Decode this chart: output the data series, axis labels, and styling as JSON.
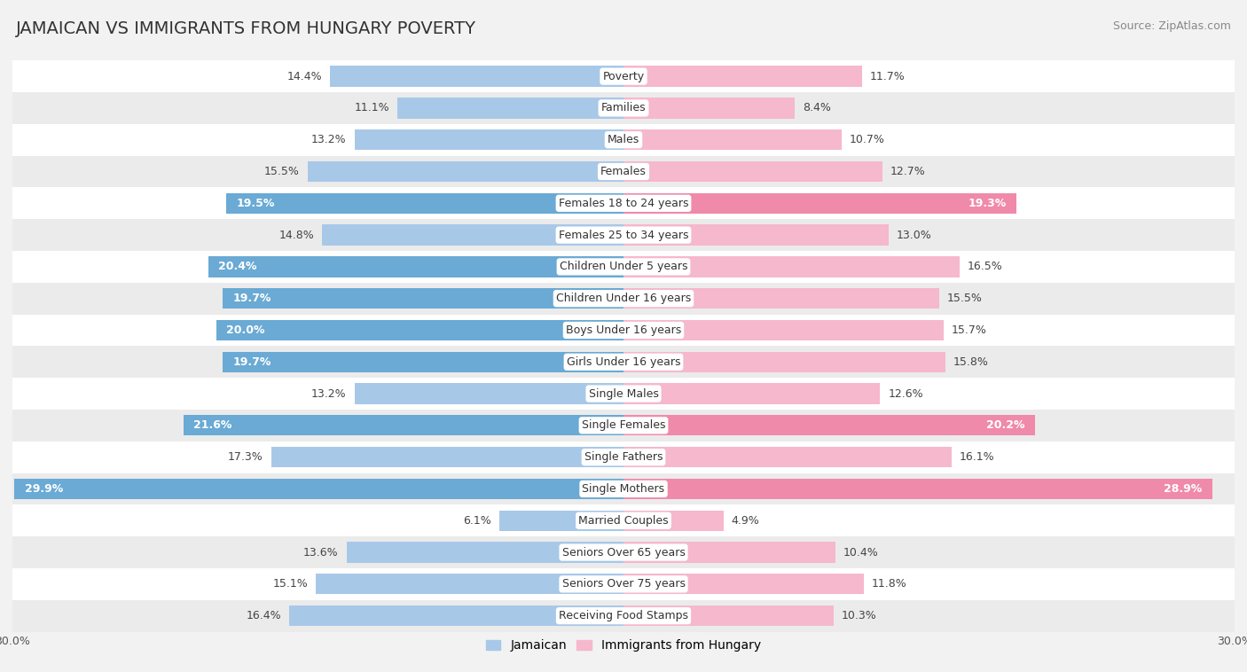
{
  "title": "JAMAICAN VS IMMIGRANTS FROM HUNGARY POVERTY",
  "source": "Source: ZipAtlas.com",
  "categories": [
    "Poverty",
    "Families",
    "Males",
    "Females",
    "Females 18 to 24 years",
    "Females 25 to 34 years",
    "Children Under 5 years",
    "Children Under 16 years",
    "Boys Under 16 years",
    "Girls Under 16 years",
    "Single Males",
    "Single Females",
    "Single Fathers",
    "Single Mothers",
    "Married Couples",
    "Seniors Over 65 years",
    "Seniors Over 75 years",
    "Receiving Food Stamps"
  ],
  "jamaican": [
    14.4,
    11.1,
    13.2,
    15.5,
    19.5,
    14.8,
    20.4,
    19.7,
    20.0,
    19.7,
    13.2,
    21.6,
    17.3,
    29.9,
    6.1,
    13.6,
    15.1,
    16.4
  ],
  "hungary": [
    11.7,
    8.4,
    10.7,
    12.7,
    19.3,
    13.0,
    16.5,
    15.5,
    15.7,
    15.8,
    12.6,
    20.2,
    16.1,
    28.9,
    4.9,
    10.4,
    11.8,
    10.3
  ],
  "max_val": 30.0,
  "bar_height": 0.65,
  "jamaican_color_light": "#a8c8e8",
  "jamaican_color_dark": "#6aaad4",
  "hungary_color_light": "#f5b8cc",
  "hungary_color_dark": "#f08aaa",
  "bg_color": "#f2f2f2",
  "row_light": "#ffffff",
  "row_dark": "#ebebeb",
  "label_fontsize": 9.0,
  "title_fontsize": 14,
  "source_fontsize": 9,
  "axis_label_fontsize": 9,
  "legend_label_jamaican": "Jamaican",
  "legend_label_hungary": "Immigrants from Hungary",
  "dark_threshold": 17.5
}
